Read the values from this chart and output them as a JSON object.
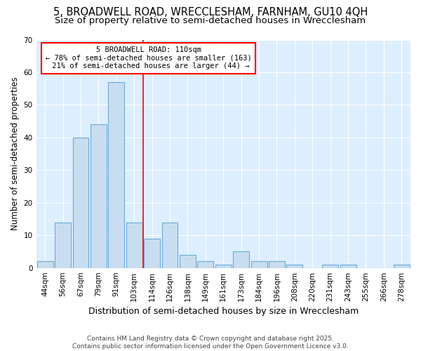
{
  "title1": "5, BROADWELL ROAD, WRECCLESHAM, FARNHAM, GU10 4QH",
  "title2": "Size of property relative to semi-detached houses in Wrecclesham",
  "xlabel": "Distribution of semi-detached houses by size in Wrecclesham",
  "ylabel": "Number of semi-detached properties",
  "categories": [
    "44sqm",
    "56sqm",
    "67sqm",
    "79sqm",
    "91sqm",
    "103sqm",
    "114sqm",
    "126sqm",
    "138sqm",
    "149sqm",
    "161sqm",
    "173sqm",
    "184sqm",
    "196sqm",
    "208sqm",
    "220sqm",
    "231sqm",
    "243sqm",
    "255sqm",
    "266sqm",
    "278sqm"
  ],
  "values": [
    2,
    14,
    40,
    44,
    57,
    14,
    9,
    14,
    4,
    2,
    1,
    5,
    2,
    2,
    1,
    0,
    1,
    1,
    0,
    0,
    1
  ],
  "bar_color": "#c9ddf0",
  "bar_edge_color": "#6aabdb",
  "bar_linewidth": 0.8,
  "vline_color": "red",
  "vline_linewidth": 1.2,
  "vline_index": 5,
  "annotation_line1": "5 BROADWELL ROAD: 110sqm",
  "annotation_line2": "← 78% of semi-detached houses are smaller (163)",
  "annotation_line3": " 21% of semi-detached houses are larger (44) →",
  "annotation_box_color": "red",
  "annotation_facecolor": "white",
  "ylim": [
    0,
    70
  ],
  "yticks": [
    0,
    10,
    20,
    30,
    40,
    50,
    60,
    70
  ],
  "fig_bg_color": "#ffffff",
  "plot_bg_color": "#ddeeff",
  "grid_color": "#ffffff",
  "footer": "Contains HM Land Registry data © Crown copyright and database right 2025.\nContains public sector information licensed under the Open Government Licence v3.0.",
  "title1_fontsize": 10.5,
  "title2_fontsize": 9.5,
  "tick_fontsize": 7.5,
  "ylabel_fontsize": 8.5,
  "xlabel_fontsize": 9,
  "footer_fontsize": 6.5,
  "annot_fontsize": 7.5
}
